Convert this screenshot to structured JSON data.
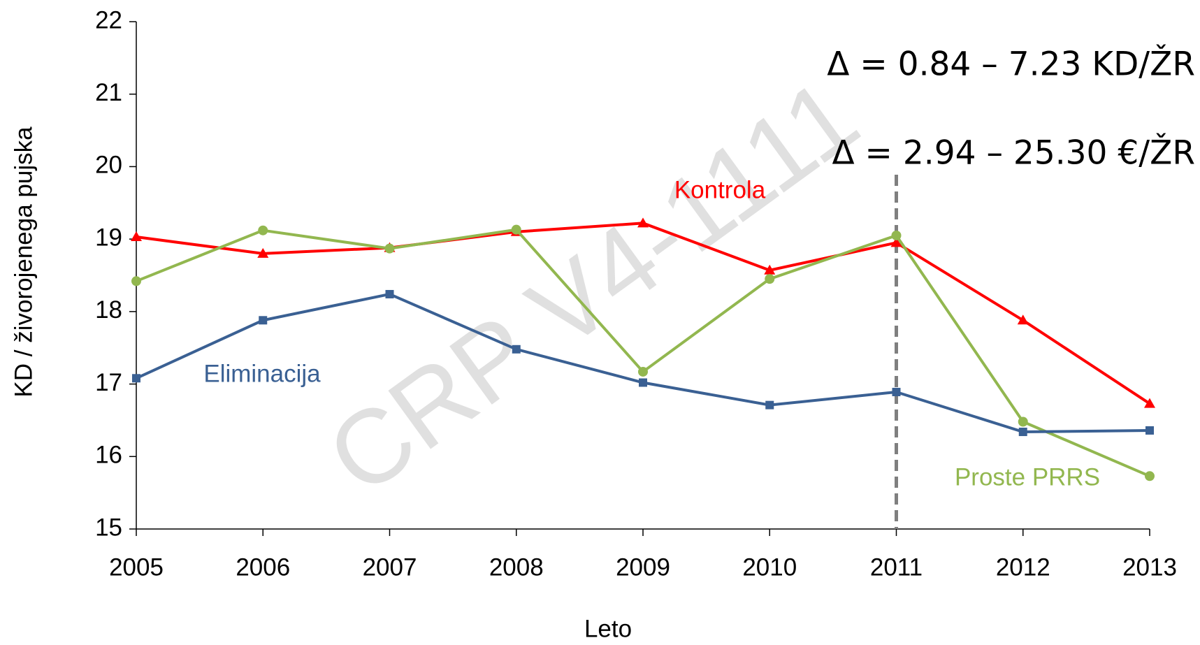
{
  "chart_data": {
    "type": "line",
    "x_label": "Leto",
    "y_label": "KD / živorojenega pujska",
    "annotations": [
      "Δ = 0.84 – 7.23 KD/ŽR",
      "Δ = 2.94 – 25.30 €/ŽR"
    ],
    "watermark": "CRP V4-1111",
    "categories": [
      "2005",
      "2006",
      "2007",
      "2008",
      "2009",
      "2010",
      "2011",
      "2012",
      "2013"
    ],
    "reference_line": {
      "x": "2011",
      "color": "#7f7f7f"
    },
    "series": [
      {
        "name": "Kontrola",
        "color": "#ff0000",
        "marker": "triangle",
        "values": [
          19.03,
          18.8,
          18.88,
          19.1,
          19.22,
          18.57,
          18.95,
          17.88,
          16.73
        ]
      },
      {
        "name": "Proste PRRS",
        "color": "#92b74f",
        "marker": "circle",
        "values": [
          18.42,
          19.12,
          18.87,
          19.13,
          17.17,
          18.45,
          19.05,
          16.48,
          15.73
        ]
      },
      {
        "name": "Eliminacija",
        "color": "#3a6093",
        "marker": "square",
        "values": [
          17.08,
          17.88,
          18.24,
          17.48,
          17.02,
          16.71,
          16.89,
          16.34,
          16.36
        ]
      }
    ],
    "ylim": [
      15,
      22
    ],
    "yticks": [
      15,
      16,
      17,
      18,
      19,
      20,
      21,
      22
    ],
    "grid": false
  }
}
